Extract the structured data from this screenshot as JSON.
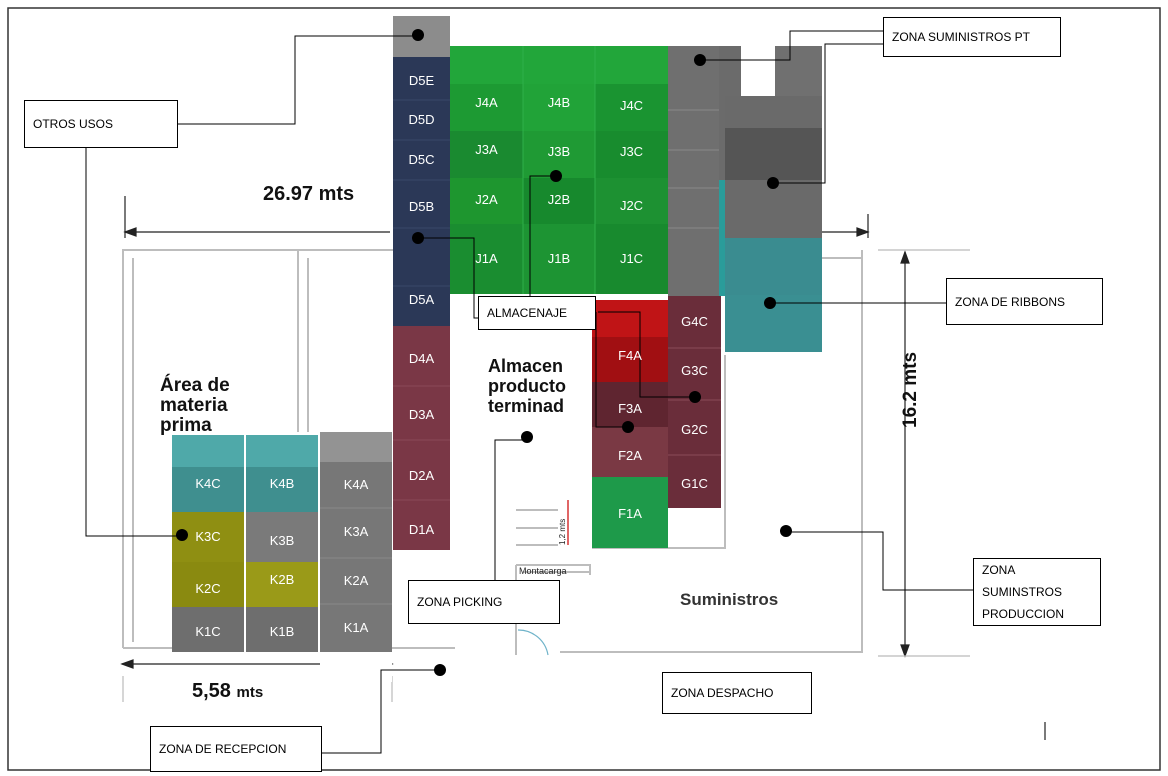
{
  "callouts": {
    "otros_usos": "OTROS USOS",
    "zona_suministros_pt": "ZONA SUMINISTROS PT",
    "zona_ribbons": "ZONA DE RIBBONS",
    "almacenaje": "ALMACENAJE",
    "zona_picking": "ZONA PICKING",
    "zona_suministros_produccion": "ZONA SUMINSTROS PRODUCCION",
    "zona_despacho": "ZONA DESPACHO",
    "zona_recepcion": "ZONA DE RECEPCION"
  },
  "dimensions": {
    "width_total": "26.97 mts",
    "height_total": "16.2 mts",
    "width_left": "5,58",
    "width_left_unit": "mts",
    "montacarga_gap": "1,2 mts"
  },
  "areas": {
    "materia_prima": "Área de\nmateria\nprima",
    "producto_terminado": "Almacen\nproducto\nterminad",
    "suministros": "Suministros",
    "montacarga": "Montacarga"
  },
  "racks": {
    "D": [
      "D5E",
      "D5D",
      "D5C",
      "D5B",
      "D5A",
      "D4A",
      "D3A",
      "D2A",
      "D1A"
    ],
    "J": [
      "J4A",
      "J4B",
      "J4C",
      "J3A",
      "J3B",
      "J3C",
      "J2A",
      "J2B",
      "J2C",
      "J1A",
      "J1B",
      "J1C"
    ],
    "F": [
      "F4A",
      "F3A",
      "F2A",
      "F1A"
    ],
    "G": [
      "G4C",
      "G3C",
      "G2C",
      "G1C"
    ],
    "K": [
      "K4C",
      "K4B",
      "K4A",
      "K3C",
      "K3B",
      "K3A",
      "K2C",
      "K2B",
      "K2A",
      "K1C",
      "K1B",
      "K1A"
    ]
  },
  "colors": {
    "d_blue": "#2b3857",
    "d_maroon": "#7a3746",
    "j_green": "#1f9c3a",
    "f_red": "#a10f12",
    "f_darkmaroon": "#6e2a34",
    "f_green": "#1e9a4a",
    "g_maroon": "#6a2d3a",
    "gray_dark": "#6e6e6e",
    "teal": "#3a8c90",
    "k_olive": "#8f8f12",
    "k_gray": "#747474"
  }
}
